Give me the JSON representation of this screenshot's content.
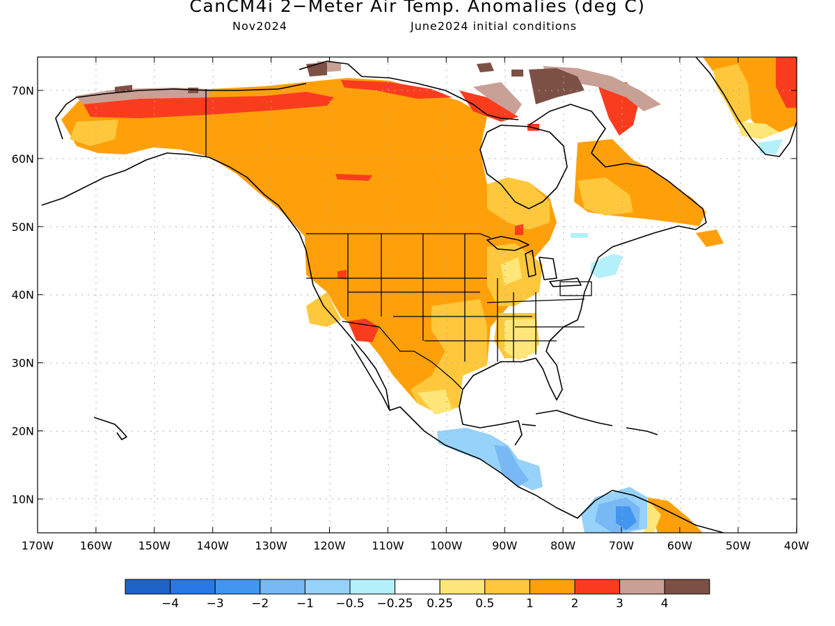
{
  "title": "CanCM4i 2−Meter Air Temp. Anomalies (deg C)",
  "subtitle_left": "Nov2024",
  "subtitle_right": "June2024 initial conditions",
  "lat_labels": [
    "70N",
    "60N",
    "50N",
    "40N",
    "30N",
    "20N",
    "10N"
  ],
  "lon_labels": [
    "170W",
    "160W",
    "150W",
    "140W",
    "130W",
    "120W",
    "110W",
    "100W",
    "90W",
    "80W",
    "70W",
    "60W",
    "50W",
    "40W"
  ],
  "colorbar": {
    "colors": [
      "#1e64c8",
      "#2878e6",
      "#4196f0",
      "#78b9f5",
      "#96d2fa",
      "#b4f0fa",
      "#ffffff",
      "#ffe678",
      "#ffc83c",
      "#ffa00a",
      "#fa3c1e",
      "#c8a096",
      "#7d5046"
    ],
    "labels": [
      "−4",
      "−3",
      "−2",
      "−1",
      "−0.5",
      "−0.25",
      "0.25",
      "0.5",
      "1",
      "2",
      "3",
      "4"
    ]
  }
}
